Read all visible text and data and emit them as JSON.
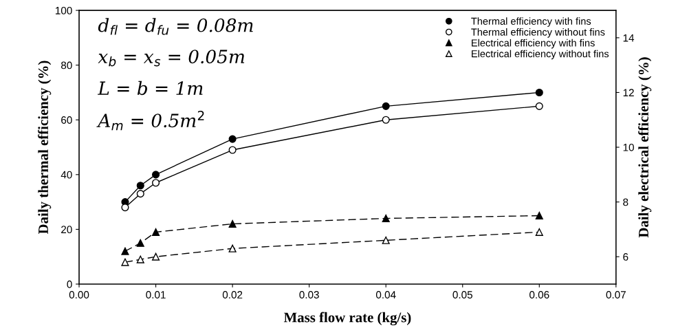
{
  "chart_data": {
    "type": "line",
    "xlabel": "Mass flow rate (kg/s)",
    "ylabel": "Daily thermal efficiency (%)",
    "y2label": "Daily electrical efficiency (%)",
    "x": [
      0.006,
      0.008,
      0.01,
      0.02,
      0.04,
      0.06
    ],
    "series": [
      {
        "name": "Thermal efficiency with fins",
        "color": "#000000",
        "marker": "circle",
        "line_style": "solid",
        "values": [
          30,
          36,
          40,
          53,
          65,
          70
        ]
      },
      {
        "name": "Thermal efficiency without fins",
        "color": "#ffffff",
        "marker": "circle",
        "line_style": "solid",
        "values": [
          28,
          33,
          37,
          49,
          60,
          65
        ]
      },
      {
        "name": "Electrical efficiency with fins",
        "color": "#000000",
        "marker": "triangle",
        "line_style": "dashed",
        "axis": "y2",
        "values": [
          6.2,
          6.5,
          6.9,
          7.2,
          7.4,
          7.5
        ]
      },
      {
        "name": "Electrical efficiency without fins",
        "color": "#ffffff",
        "marker": "triangle",
        "line_style": "dashed",
        "axis": "y2",
        "values": [
          5.8,
          5.9,
          6.0,
          6.3,
          6.6,
          6.9
        ]
      }
    ],
    "xlim": [
      0,
      0.07
    ],
    "xticks": [
      {
        "value": 0,
        "label": "0.00"
      },
      {
        "value": 0.01,
        "label": "0.01"
      },
      {
        "value": 0.02,
        "label": "0.02"
      },
      {
        "value": 0.03,
        "label": "0.03"
      },
      {
        "value": 0.04,
        "label": "0.04"
      },
      {
        "value": 0.05,
        "label": "0.05"
      },
      {
        "value": 0.06,
        "label": "0.06"
      },
      {
        "value": 0.07,
        "label": "0.07"
      }
    ],
    "ylim": [
      0,
      100
    ],
    "yticks": [
      0,
      20,
      40,
      60,
      80,
      100
    ],
    "y2lim": [
      5,
      15
    ],
    "y2ticks": [
      6,
      8,
      10,
      12,
      14
    ],
    "annotations": [
      "d$_{fl}$ = d$_{fu}$ = 0.08m",
      "x$_{b}$ = x$_{s}$ = 0.05m",
      "L = b = 1m",
      "A$_{m}$ = 0.5m$^{2}$"
    ],
    "legend": "top right",
    "grid": false
  }
}
